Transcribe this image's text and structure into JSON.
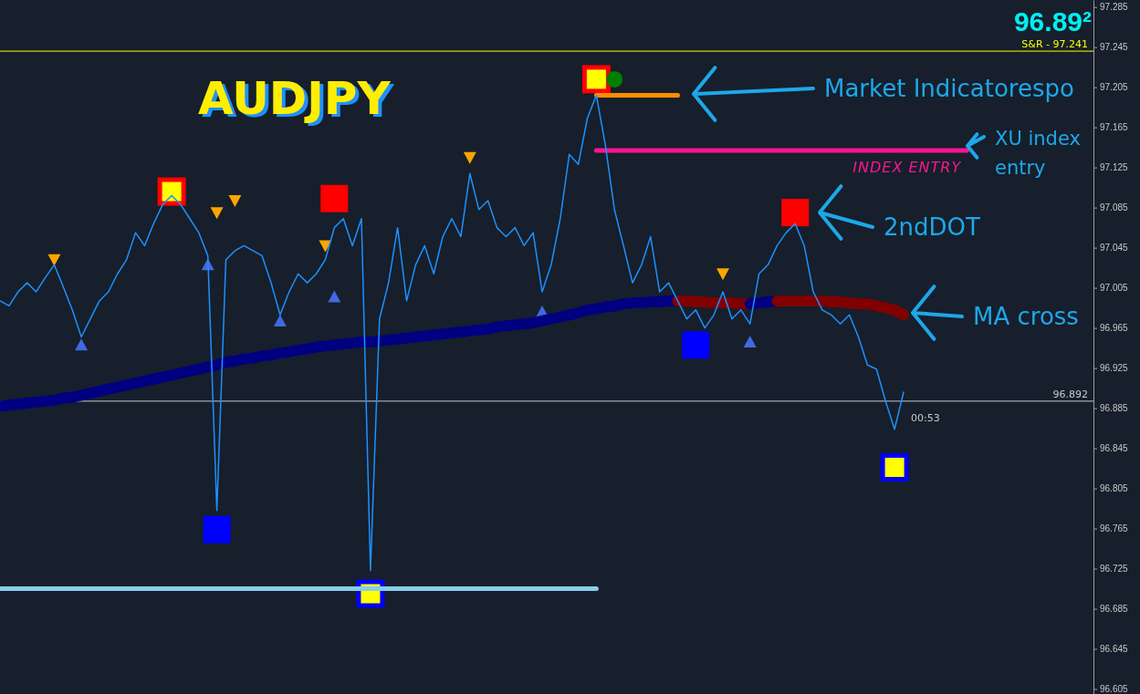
{
  "chart_data": {
    "type": "line",
    "title": "AUDJPY",
    "ylim": [
      96.6,
      97.292
    ],
    "categories": [
      null,
      null,
      null,
      null,
      null,
      null,
      null,
      null,
      null,
      null,
      null,
      null,
      null,
      null,
      null,
      null,
      null,
      null,
      null,
      null,
      null,
      null,
      null,
      null,
      null,
      null,
      null,
      null,
      null,
      null,
      null,
      null,
      null,
      null,
      null,
      null,
      null,
      null,
      null,
      null,
      null,
      null,
      null,
      null,
      null,
      null,
      null,
      null,
      null,
      null,
      null,
      null,
      null,
      null,
      null,
      null,
      null,
      null,
      null,
      null,
      null,
      null,
      null,
      null,
      null,
      null,
      null,
      null,
      null,
      null,
      null,
      null,
      null,
      null,
      null,
      null,
      null,
      null,
      null,
      null,
      null,
      null,
      null,
      null,
      null,
      null,
      null,
      null,
      null,
      null,
      null,
      null,
      null,
      null,
      null,
      null,
      null,
      null,
      null,
      null,
      null,
      null,
      null,
      null,
      null,
      null,
      null,
      null,
      null,
      null,
      null,
      null,
      null,
      null,
      null,
      null,
      null,
      null,
      null,
      null,
      null
    ],
    "yticks": [
      96.605,
      96.645,
      96.685,
      96.725,
      96.765,
      96.805,
      96.845,
      96.885,
      96.925,
      96.965,
      97.005,
      97.045,
      97.085,
      97.125,
      97.165,
      97.205,
      97.245,
      97.285
    ],
    "series": [
      {
        "color": "#1e90ff",
        "values": [
          96.992,
          96.987,
          97.001,
          97.01,
          97.001,
          97.015,
          97.028,
          97.006,
          96.983,
          96.956,
          96.974,
          96.992,
          97.001,
          97.019,
          97.033,
          97.06,
          97.047,
          97.069,
          97.088,
          97.097,
          97.088,
          97.074,
          97.06,
          97.037,
          96.783,
          97.033,
          97.042,
          97.047,
          97.042,
          97.037,
          97.01,
          96.978,
          97.001,
          97.019,
          97.01,
          97.019,
          97.033,
          97.065,
          97.074,
          97.047,
          97.074,
          96.723,
          96.974,
          97.01,
          97.065,
          96.992,
          97.028,
          97.047,
          97.019,
          97.056,
          97.074,
          97.056,
          97.119,
          97.083,
          97.092,
          97.065,
          97.056,
          97.065,
          97.047,
          97.06,
          97.001,
          97.028,
          97.074,
          97.138,
          97.128,
          97.174,
          97.197,
          97.147,
          97.083,
          97.047,
          97.01,
          97.028,
          97.056,
          97.001,
          97.01,
          96.992,
          96.974,
          96.983,
          96.965,
          96.978,
          97.001,
          96.974,
          96.983,
          96.969,
          97.019,
          97.028,
          97.047,
          97.06,
          97.069,
          97.047,
          97.001,
          96.983,
          96.978,
          96.969,
          96.978,
          96.956,
          96.928,
          96.924,
          96.892,
          96.864,
          96.901,
          null,
          null,
          null,
          null,
          null,
          null,
          null,
          null,
          null,
          null,
          null,
          null,
          null,
          null,
          null,
          null,
          null,
          null,
          null,
          null
        ]
      },
      {
        "color": "#000080",
        "values": [
          96.887,
          96.888,
          96.889,
          96.89,
          96.891,
          96.892,
          96.893,
          96.895,
          96.896,
          96.898,
          96.9,
          96.902,
          96.904,
          96.906,
          96.908,
          96.91,
          96.912,
          96.914,
          96.916,
          96.918,
          96.92,
          96.922,
          96.924,
          96.926,
          96.928,
          96.931,
          96.932,
          96.934,
          96.935,
          96.937,
          96.938,
          96.94,
          96.941,
          96.943,
          96.944,
          96.946,
          96.947,
          96.948,
          96.949,
          96.95,
          96.951,
          96.951,
          96.952,
          96.953,
          96.954,
          96.955,
          96.956,
          96.957,
          96.958,
          96.959,
          96.96,
          96.961,
          96.962,
          96.963,
          96.964,
          96.966,
          96.967,
          96.968,
          96.969,
          96.97,
          96.972,
          96.974,
          96.976,
          96.978,
          96.98,
          96.983,
          96.984,
          96.986,
          96.987,
          96.989,
          96.99,
          96.99,
          96.991,
          96.991,
          96.992,
          96.992,
          null,
          null,
          null,
          null,
          null,
          null,
          null,
          null,
          null,
          null,
          null,
          null,
          null,
          null,
          null,
          null,
          null,
          null,
          null,
          null,
          null,
          null,
          null,
          null,
          null,
          null,
          null,
          null,
          null,
          null,
          null,
          null,
          null,
          null,
          null,
          null,
          null,
          null,
          null,
          null,
          null,
          null,
          null,
          null,
          null
        ]
      },
      {
        "color": "#800000",
        "values": [
          null,
          null,
          null,
          null,
          null,
          null,
          null,
          null,
          null,
          null,
          null,
          null,
          null,
          null,
          null,
          null,
          null,
          null,
          null,
          null,
          null,
          null,
          null,
          null,
          null,
          null,
          null,
          null,
          null,
          null,
          null,
          null,
          null,
          null,
          null,
          null,
          null,
          null,
          null,
          null,
          null,
          null,
          null,
          null,
          null,
          null,
          null,
          null,
          null,
          null,
          null,
          null,
          null,
          null,
          null,
          null,
          null,
          null,
          null,
          null,
          null,
          null,
          null,
          null,
          null,
          null,
          null,
          null,
          null,
          null,
          null,
          null,
          null,
          null,
          null,
          96.992,
          96.992,
          96.991,
          96.991,
          96.99,
          96.99,
          96.99,
          96.989,
          96.989,
          null,
          null,
          null,
          null,
          null,
          null,
          null,
          null,
          null,
          null,
          null,
          null,
          null,
          null,
          null,
          null,
          null,
          null,
          null,
          null,
          null,
          null,
          null,
          null,
          null,
          null,
          null,
          null,
          null,
          null,
          null,
          null,
          null,
          null,
          null,
          null,
          null
        ]
      },
      {
        "color": "#000080",
        "values": [
          null,
          null,
          null,
          null,
          null,
          null,
          null,
          null,
          null,
          null,
          null,
          null,
          null,
          null,
          null,
          null,
          null,
          null,
          null,
          null,
          null,
          null,
          null,
          null,
          null,
          null,
          null,
          null,
          null,
          null,
          null,
          null,
          null,
          null,
          null,
          null,
          null,
          null,
          null,
          null,
          null,
          null,
          null,
          null,
          null,
          null,
          null,
          null,
          null,
          null,
          null,
          null,
          null,
          null,
          null,
          null,
          null,
          null,
          null,
          null,
          null,
          null,
          null,
          null,
          null,
          null,
          null,
          null,
          null,
          null,
          null,
          null,
          null,
          null,
          null,
          null,
          null,
          null,
          null,
          null,
          null,
          null,
          null,
          96.989,
          96.99,
          96.991,
          96.992,
          null,
          null,
          null,
          null,
          null,
          null,
          null,
          null,
          null,
          null,
          null,
          null,
          null,
          null,
          null,
          null,
          null,
          null,
          null,
          null,
          null,
          null,
          null,
          null,
          null,
          null,
          null,
          null,
          null,
          null,
          null,
          null,
          null,
          null
        ]
      },
      {
        "color": "#800000",
        "values": [
          null,
          null,
          null,
          null,
          null,
          null,
          null,
          null,
          null,
          null,
          null,
          null,
          null,
          null,
          null,
          null,
          null,
          null,
          null,
          null,
          null,
          null,
          null,
          null,
          null,
          null,
          null,
          null,
          null,
          null,
          null,
          null,
          null,
          null,
          null,
          null,
          null,
          null,
          null,
          null,
          null,
          null,
          null,
          null,
          null,
          null,
          null,
          null,
          null,
          null,
          null,
          null,
          null,
          null,
          null,
          null,
          null,
          null,
          null,
          null,
          null,
          null,
          null,
          null,
          null,
          null,
          null,
          null,
          null,
          null,
          null,
          null,
          null,
          null,
          null,
          null,
          null,
          null,
          null,
          null,
          null,
          null,
          null,
          null,
          null,
          null,
          96.992,
          96.992,
          96.992,
          96.992,
          96.992,
          96.992,
          96.991,
          96.991,
          96.99,
          96.989,
          96.989,
          96.987,
          96.985,
          96.983,
          96.978,
          null,
          null,
          null,
          null,
          null,
          null,
          null,
          null,
          null,
          null,
          null,
          null,
          null,
          null,
          null,
          null,
          null,
          null,
          null,
          null
        ]
      },
      {
        "color": "#87ceeb",
        "values": [
          96.705,
          96.705,
          96.705,
          96.705,
          96.705,
          96.705,
          96.705,
          96.705,
          96.705,
          96.705,
          96.705,
          96.705,
          96.705,
          96.705,
          96.705,
          96.705,
          96.705,
          96.705,
          96.705,
          96.705,
          96.705,
          96.705,
          96.705,
          96.705,
          96.705,
          96.705,
          96.705,
          96.705,
          96.705,
          96.705,
          96.705,
          96.705,
          96.705,
          96.705,
          96.705,
          96.705,
          96.705,
          96.705,
          96.705,
          96.705,
          96.705,
          96.705,
          96.705,
          96.705,
          96.705,
          96.705,
          96.705,
          96.705,
          96.705,
          96.705,
          96.705,
          96.705,
          96.705,
          96.705,
          96.705,
          96.705,
          96.705,
          96.705,
          96.705,
          96.705,
          96.705,
          96.705,
          96.705,
          96.705,
          96.705,
          96.705,
          96.705,
          null,
          null,
          null,
          null,
          null,
          null,
          null,
          null,
          null,
          null,
          null,
          null,
          null,
          null,
          null,
          null,
          null,
          null,
          null,
          null,
          null,
          null,
          null,
          null,
          null,
          null,
          null,
          null,
          null,
          null,
          null,
          null,
          null,
          null,
          null,
          null,
          null,
          null,
          null,
          null,
          null,
          null,
          null,
          null,
          null,
          null,
          null,
          null,
          null,
          null,
          null,
          null,
          null,
          null
        ]
      },
      {
        "color": "#ff1493",
        "name": "INDEX ENTRY",
        "values": [
          null,
          null,
          null,
          null,
          null,
          null,
          null,
          null,
          null,
          null,
          null,
          null,
          null,
          null,
          null,
          null,
          null,
          null,
          null,
          null,
          null,
          null,
          null,
          null,
          null,
          null,
          null,
          null,
          null,
          null,
          null,
          null,
          null,
          null,
          null,
          null,
          null,
          null,
          null,
          null,
          null,
          null,
          null,
          null,
          null,
          null,
          null,
          null,
          null,
          null,
          null,
          null,
          null,
          null,
          null,
          null,
          null,
          null,
          null,
          null,
          null,
          null,
          null,
          null,
          null,
          null,
          97.142,
          97.142,
          97.142,
          97.142,
          97.142,
          97.142,
          97.142,
          97.142,
          97.142,
          97.142,
          97.142,
          97.142,
          97.142,
          97.142,
          97.142,
          97.142,
          97.142,
          97.142,
          97.142,
          97.142,
          97.142,
          97.142,
          97.142,
          97.142,
          97.142,
          97.142,
          97.142,
          97.142,
          97.142,
          97.142,
          97.142,
          97.142,
          97.142,
          97.142,
          97.142,
          97.142,
          97.142,
          97.142,
          97.142,
          97.142,
          97.142,
          97.142,
          null,
          null,
          null,
          null,
          null,
          null,
          null,
          null,
          null,
          null,
          null,
          null,
          null
        ]
      },
      {
        "color": "#ff8c00",
        "values": [
          null,
          null,
          null,
          null,
          null,
          null,
          null,
          null,
          null,
          null,
          null,
          null,
          null,
          null,
          null,
          null,
          null,
          null,
          null,
          null,
          null,
          null,
          null,
          null,
          null,
          null,
          null,
          null,
          null,
          null,
          null,
          null,
          null,
          null,
          null,
          null,
          null,
          null,
          null,
          null,
          null,
          null,
          null,
          null,
          null,
          null,
          null,
          null,
          null,
          null,
          null,
          null,
          null,
          null,
          null,
          null,
          null,
          null,
          null,
          null,
          null,
          null,
          null,
          null,
          null,
          null,
          97.197,
          97.197,
          97.197,
          97.197,
          97.197,
          97.197,
          97.197,
          97.197,
          97.197,
          97.197,
          null,
          null,
          null,
          null,
          null,
          null,
          null,
          null,
          null,
          null,
          null,
          null,
          null,
          null,
          null,
          null,
          null,
          null,
          null,
          null,
          null,
          null,
          null,
          null,
          null,
          null,
          null,
          null,
          null,
          null,
          null,
          null,
          null,
          null,
          null,
          null,
          null,
          null,
          null,
          null,
          null,
          null,
          null,
          null,
          null
        ]
      },
      {
        "type": "scatter",
        "color": "#ffff00",
        "marker": "square",
        "values": [
          null,
          null,
          null,
          null,
          null,
          null,
          null,
          null,
          null,
          null,
          null,
          null,
          null,
          null,
          null,
          null,
          null,
          null,
          null,
          97.101,
          null,
          null,
          null,
          null,
          null,
          null,
          null,
          null,
          null,
          null,
          null,
          null,
          null,
          null,
          null,
          null,
          null,
          null,
          null,
          null,
          null,
          null,
          null,
          null,
          null,
          null,
          null,
          null,
          null,
          null,
          null,
          null,
          null,
          null,
          null,
          null,
          null,
          null,
          null,
          null,
          null,
          null,
          null,
          null,
          null,
          null,
          97.213,
          null,
          null,
          null,
          null,
          null,
          null,
          null,
          null,
          null,
          null,
          null,
          null,
          null,
          null,
          null,
          null,
          null,
          null,
          null,
          null,
          null,
          null,
          null,
          null,
          null,
          null,
          null,
          null,
          null,
          null,
          null,
          null,
          null,
          null,
          null,
          null,
          null,
          null,
          null,
          null,
          null,
          null,
          null,
          null,
          null,
          null,
          null,
          null,
          null,
          null,
          null,
          null,
          null,
          null
        ]
      },
      {
        "type": "scatter",
        "color": "#ff0000",
        "marker": "square",
        "values": [
          null,
          null,
          null,
          null,
          null,
          null,
          null,
          null,
          null,
          null,
          null,
          null,
          null,
          null,
          null,
          null,
          null,
          null,
          null,
          null,
          null,
          null,
          null,
          null,
          null,
          null,
          null,
          null,
          null,
          null,
          null,
          null,
          null,
          null,
          null,
          null,
          null,
          97.094,
          null,
          null,
          null,
          null,
          null,
          null,
          null,
          null,
          null,
          null,
          null,
          null,
          null,
          null,
          null,
          null,
          null,
          null,
          null,
          null,
          null,
          null,
          null,
          null,
          null,
          null,
          null,
          null,
          null,
          null,
          null,
          null,
          null,
          null,
          null,
          null,
          null,
          null,
          null,
          null,
          null,
          null,
          null,
          null,
          null,
          null,
          null,
          null,
          null,
          null,
          97.08,
          null,
          null,
          null,
          null,
          null,
          null,
          null,
          null,
          null,
          null,
          null,
          null,
          null,
          null,
          null,
          null,
          null,
          null,
          null,
          null,
          null,
          null,
          null,
          null,
          null,
          null,
          null,
          null,
          null,
          null,
          null,
          null
        ]
      },
      {
        "type": "scatter",
        "color": "#0000ff",
        "marker": "square",
        "values": [
          null,
          null,
          null,
          null,
          null,
          null,
          null,
          null,
          null,
          null,
          null,
          null,
          null,
          null,
          null,
          null,
          null,
          null,
          null,
          null,
          null,
          null,
          null,
          null,
          96.764,
          null,
          null,
          null,
          null,
          null,
          null,
          null,
          null,
          null,
          null,
          null,
          null,
          null,
          null,
          null,
          null,
          null,
          null,
          null,
          null,
          null,
          null,
          null,
          null,
          null,
          null,
          null,
          null,
          null,
          null,
          null,
          null,
          null,
          null,
          null,
          null,
          null,
          null,
          null,
          null,
          null,
          null,
          null,
          null,
          null,
          null,
          null,
          null,
          null,
          null,
          null,
          null,
          96.948,
          null,
          null,
          null,
          null,
          null,
          null,
          null,
          null,
          null,
          null,
          null,
          null,
          null,
          null,
          null,
          null,
          null,
          null,
          null,
          null,
          null,
          null,
          null,
          null,
          null,
          null,
          null,
          null,
          null,
          null,
          null,
          null,
          null,
          null,
          null,
          null,
          null,
          null,
          null,
          null,
          null,
          null,
          null
        ]
      },
      {
        "type": "scatter",
        "color": "#ffff00",
        "marker": "square",
        "values": [
          null,
          null,
          null,
          null,
          null,
          null,
          null,
          null,
          null,
          null,
          null,
          null,
          null,
          null,
          null,
          null,
          null,
          null,
          null,
          null,
          null,
          null,
          null,
          null,
          null,
          null,
          null,
          null,
          null,
          null,
          null,
          null,
          null,
          null,
          null,
          null,
          null,
          null,
          null,
          null,
          null,
          96.7,
          null,
          null,
          null,
          null,
          null,
          null,
          null,
          null,
          null,
          null,
          null,
          null,
          null,
          null,
          null,
          null,
          null,
          null,
          null,
          null,
          null,
          null,
          null,
          null,
          null,
          null,
          null,
          null,
          null,
          null,
          null,
          null,
          null,
          null,
          null,
          null,
          null,
          null,
          null,
          null,
          null,
          null,
          null,
          null,
          null,
          null,
          null,
          null,
          null,
          null,
          null,
          null,
          null,
          null,
          null,
          null,
          null,
          96.826,
          null,
          null,
          null,
          null,
          null,
          null,
          null,
          null,
          null,
          null,
          null,
          null,
          null,
          null,
          null,
          null,
          null,
          null,
          null,
          null,
          null
        ]
      },
      {
        "type": "scatter",
        "color": "#008000",
        "marker": "circle",
        "values": [
          null,
          null,
          null,
          null,
          null,
          null,
          null,
          null,
          null,
          null,
          null,
          null,
          null,
          null,
          null,
          null,
          null,
          null,
          null,
          null,
          null,
          null,
          null,
          null,
          null,
          null,
          null,
          null,
          null,
          null,
          null,
          null,
          null,
          null,
          null,
          null,
          null,
          null,
          null,
          null,
          null,
          null,
          null,
          null,
          null,
          null,
          null,
          null,
          null,
          null,
          null,
          null,
          null,
          null,
          null,
          null,
          null,
          null,
          null,
          null,
          null,
          null,
          null,
          null,
          null,
          null,
          null,
          null,
          97.213,
          null,
          null,
          null,
          null,
          null,
          null,
          null,
          null,
          null,
          null,
          null,
          null,
          null,
          null,
          null,
          null,
          null,
          null,
          null,
          null,
          null,
          null,
          null,
          null,
          null,
          null,
          null,
          null,
          null,
          null,
          null,
          null,
          null,
          null,
          null,
          null,
          null,
          null,
          null,
          null,
          null,
          null,
          null,
          null,
          null,
          null,
          null,
          null,
          null,
          null,
          null,
          null
        ]
      },
      {
        "type": "scatter",
        "color": "#ffa500",
        "marker": "triangle",
        "values": [
          null,
          null,
          null,
          null,
          null,
          null,
          97.033,
          null,
          null,
          null,
          null,
          null,
          null,
          null,
          null,
          null,
          null,
          null,
          null,
          null,
          null,
          null,
          null,
          null,
          97.08,
          null,
          97.092,
          null,
          null,
          null,
          null,
          null,
          null,
          null,
          null,
          null,
          97.047,
          null,
          null,
          null,
          null,
          null,
          null,
          null,
          null,
          null,
          null,
          null,
          null,
          null,
          null,
          null,
          97.135,
          null,
          null,
          null,
          null,
          null,
          null,
          null,
          null,
          null,
          null,
          null,
          null,
          null,
          null,
          null,
          null,
          null,
          null,
          null,
          null,
          null,
          null,
          null,
          null,
          null,
          null,
          null,
          97.019,
          null,
          null,
          null,
          null,
          null,
          null,
          null,
          null,
          null,
          null,
          null,
          null,
          null,
          null,
          null,
          null,
          null,
          null,
          null,
          null,
          null,
          null,
          null,
          null,
          null,
          null,
          null,
          null,
          null,
          null,
          null,
          null,
          null,
          null,
          null,
          null,
          null,
          null,
          null,
          null
        ]
      },
      {
        "type": "scatter",
        "color": "#4169e1",
        "marker": "triangle",
        "values": [
          null,
          null,
          null,
          null,
          null,
          null,
          null,
          null,
          null,
          96.948,
          null,
          null,
          null,
          null,
          null,
          null,
          null,
          null,
          null,
          null,
          null,
          null,
          null,
          97.028,
          null,
          null,
          null,
          null,
          null,
          null,
          null,
          96.972,
          null,
          null,
          null,
          null,
          null,
          96.996,
          null,
          null,
          null,
          null,
          null,
          null,
          null,
          null,
          null,
          null,
          null,
          null,
          null,
          null,
          null,
          null,
          null,
          null,
          null,
          null,
          null,
          null,
          96.981,
          null,
          null,
          null,
          null,
          null,
          null,
          null,
          null,
          null,
          null,
          null,
          null,
          null,
          null,
          null,
          null,
          null,
          null,
          null,
          null,
          null,
          null,
          96.951,
          null,
          null,
          null,
          null,
          null,
          null,
          null,
          null,
          null,
          null,
          null,
          null,
          null,
          null,
          null,
          null,
          null,
          null,
          null,
          null,
          null,
          null,
          null,
          null,
          null,
          null,
          null,
          null,
          null,
          null,
          null,
          null,
          null,
          null,
          null,
          null,
          null
        ]
      }
    ],
    "ref_lines": [
      {
        "axis": "y",
        "value": 97.241,
        "label": "S&R -  97.241",
        "color": "#ffff00"
      },
      {
        "axis": "y",
        "value": 96.892,
        "label": "96.892",
        "color": "#c8c8c8"
      }
    ],
    "annotations": [
      "Market Indicatorespo",
      "XU index entry",
      "2ndDOT",
      "MA cross",
      "96.89²",
      "00:53"
    ]
  }
}
